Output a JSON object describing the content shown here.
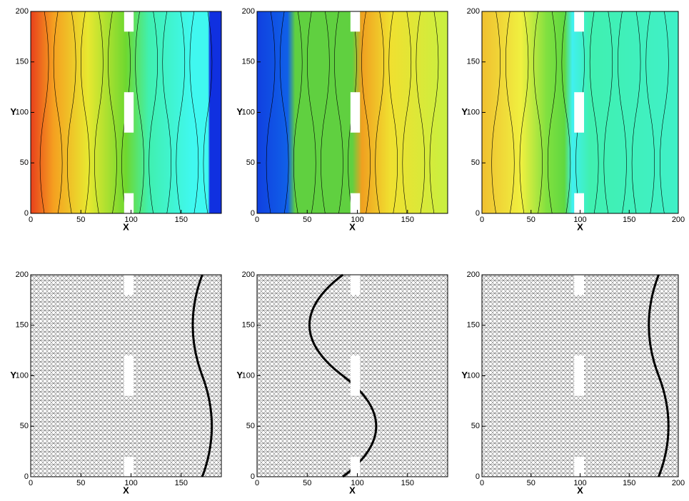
{
  "chart_data": [
    {
      "type": "contour",
      "xlabel": "X",
      "ylabel": "Y",
      "xlim": [
        0,
        190
      ],
      "ylim": [
        0,
        200
      ],
      "xticks": [
        0,
        50,
        100,
        150
      ],
      "yticks": [
        0,
        50,
        100,
        150,
        200
      ]
    },
    {
      "type": "contour",
      "xlabel": "X",
      "ylabel": "Y",
      "xlim": [
        0,
        190
      ],
      "ylim": [
        0,
        200
      ],
      "xticks": [
        0,
        50,
        100,
        150
      ],
      "yticks": [
        0,
        50,
        100,
        150,
        200
      ]
    },
    {
      "type": "contour",
      "xlabel": "X",
      "ylabel": "Y",
      "xlim": [
        0,
        200
      ],
      "ylim": [
        0,
        200
      ],
      "xticks": [
        0,
        50,
        100,
        150,
        200
      ],
      "yticks": [
        0,
        50,
        100,
        150,
        200
      ]
    },
    {
      "type": "mesh",
      "xlabel": "X",
      "ylabel": "Y",
      "xlim": [
        0,
        190
      ],
      "ylim": [
        0,
        200
      ],
      "xticks": [
        0,
        50,
        100,
        150
      ],
      "yticks": [
        0,
        50,
        100,
        150,
        200
      ]
    },
    {
      "type": "mesh",
      "xlabel": "X",
      "ylabel": "Y",
      "xlim": [
        0,
        190
      ],
      "ylim": [
        0,
        200
      ],
      "xticks": [
        0,
        50,
        100,
        150
      ],
      "yticks": [
        0,
        50,
        100,
        150,
        200
      ]
    },
    {
      "type": "mesh",
      "xlabel": "X",
      "ylabel": "Y",
      "xlim": [
        0,
        200
      ],
      "ylim": [
        0,
        200
      ],
      "xticks": [
        0,
        50,
        100,
        150,
        200
      ],
      "yticks": [
        0,
        50,
        100,
        150,
        200
      ]
    }
  ]
}
